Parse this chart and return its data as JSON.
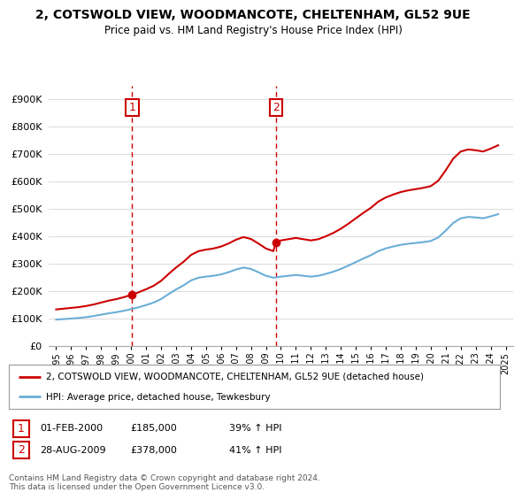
{
  "title": "2, COTSWOLD VIEW, WOODMANCOTE, CHELTENHAM, GL52 9UE",
  "subtitle": "Price paid vs. HM Land Registry's House Price Index (HPI)",
  "legend_line1": "2, COTSWOLD VIEW, WOODMANCOTE, CHELTENHAM, GL52 9UE (detached house)",
  "legend_line2": "HPI: Average price, detached house, Tewkesbury",
  "annotation1_date": "01-FEB-2000",
  "annotation1_price": "£185,000",
  "annotation1_hpi": "39% ↑ HPI",
  "annotation2_date": "28-AUG-2009",
  "annotation2_price": "£378,000",
  "annotation2_hpi": "41% ↑ HPI",
  "footer": "Contains HM Land Registry data © Crown copyright and database right 2024.\nThis data is licensed under the Open Government Licence v3.0.",
  "sale1_year": 2000.08,
  "sale1_value": 185000,
  "sale2_year": 2009.65,
  "sale2_value": 378000,
  "hpi_line_color": "#6baed6",
  "price_line_color": "#cc0000",
  "vline_color": "#cc0000",
  "background_color": "#ffffff",
  "grid_color": "#dddddd",
  "ylim": [
    0,
    950000
  ],
  "yticks": [
    0,
    100000,
    200000,
    300000,
    400000,
    500000,
    600000,
    700000,
    800000,
    900000
  ],
  "xlim_start": 1994.5,
  "xlim_end": 2025.5
}
